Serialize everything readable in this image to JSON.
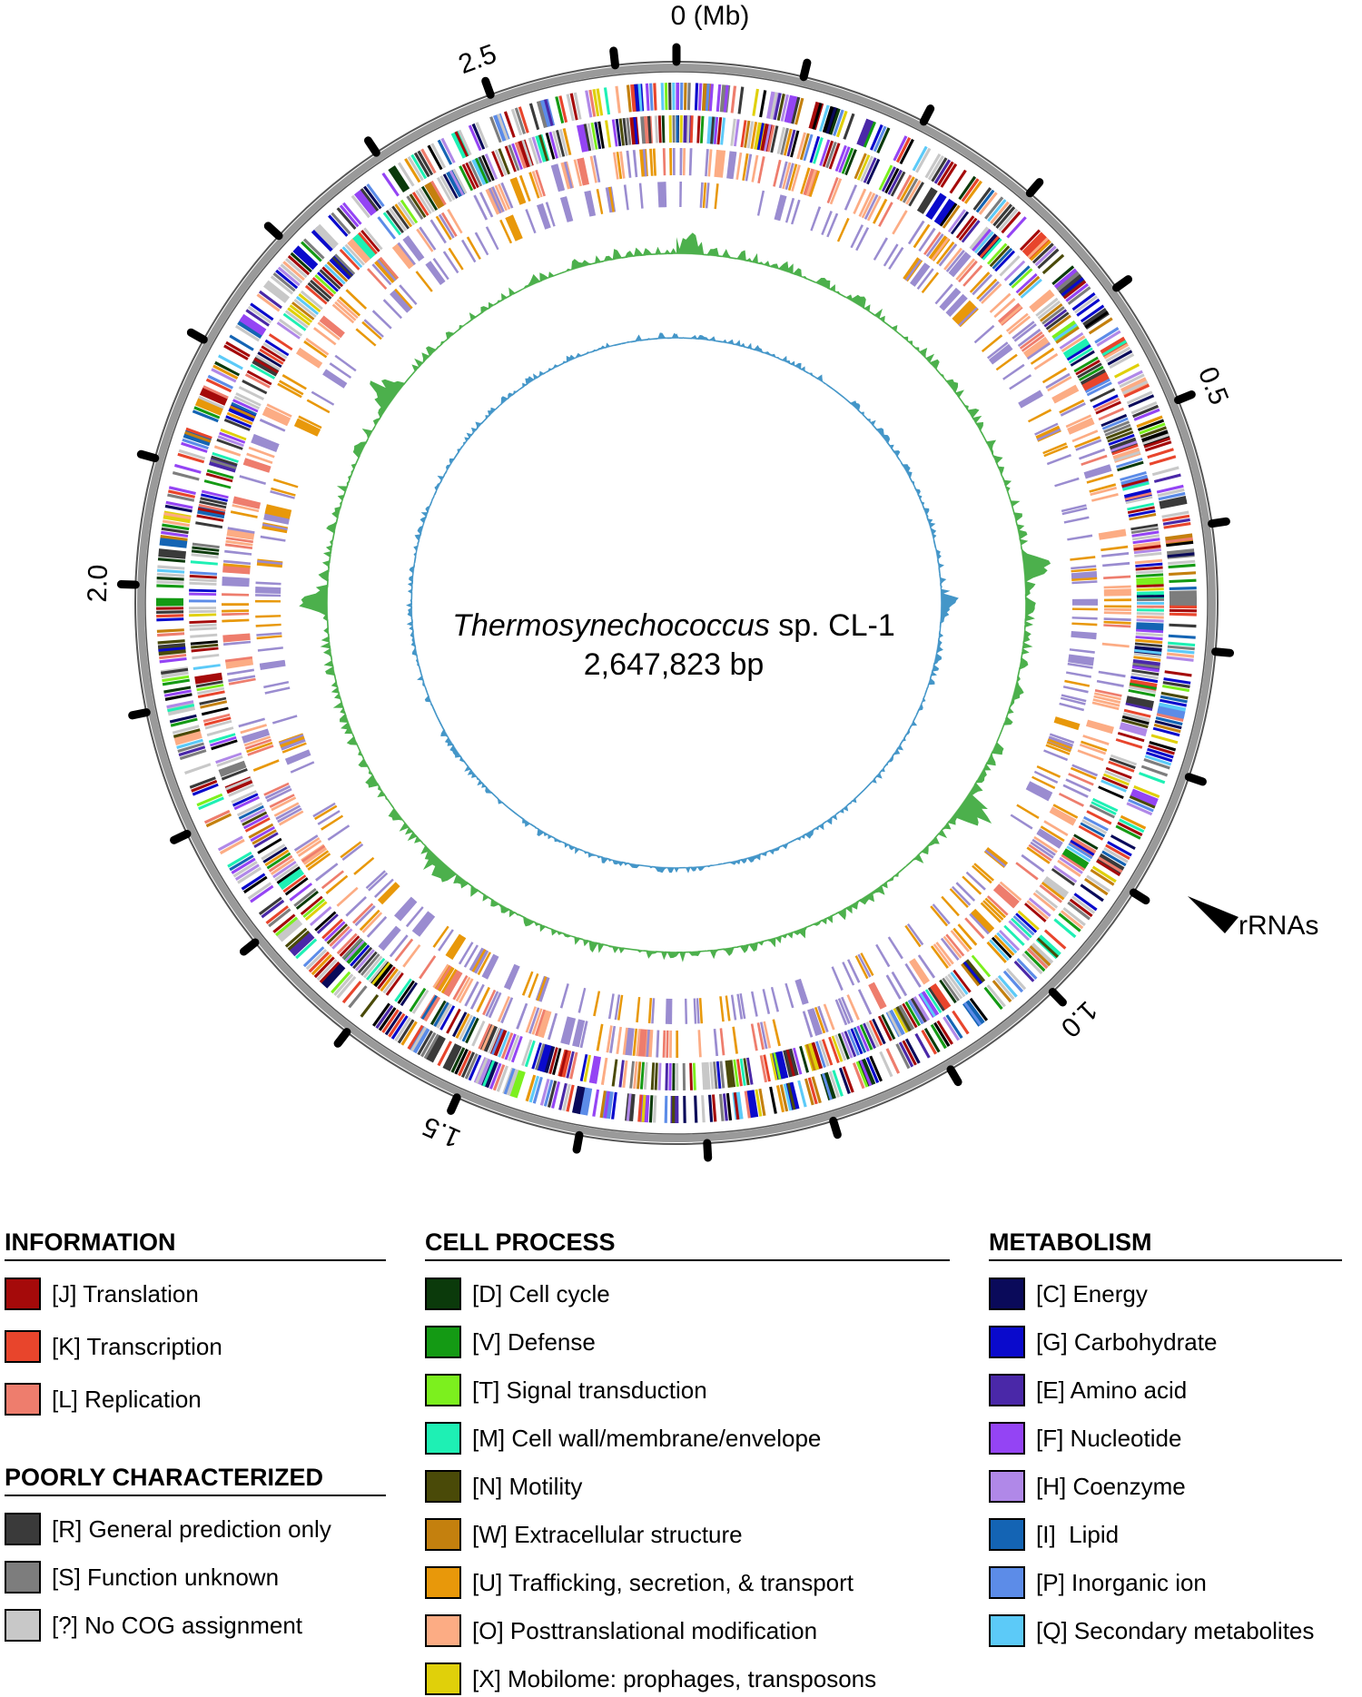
{
  "genome": {
    "organism": "Thermosynechococcus",
    "strain_suffix": " sp. CL-1",
    "size_label": "2,647,823 bp",
    "total_mb": 2.647823
  },
  "scale": {
    "zero_label": "0 (Mb)",
    "ticks": [
      {
        "mb": 0.5,
        "label": "0.5"
      },
      {
        "mb": 1.0,
        "label": "1.0"
      },
      {
        "mb": 1.5,
        "label": "1.5"
      },
      {
        "mb": 2.0,
        "label": "2.0"
      },
      {
        "mb": 2.5,
        "label": "2.5"
      }
    ]
  },
  "annotations": {
    "rrna_label": "rRNAs",
    "rrna_position_mb": 0.82
  },
  "legend": {
    "information": {
      "heading": "INFORMATION",
      "items": [
        {
          "code": "J",
          "label": "[J] Translation",
          "color": "#a50a0a"
        },
        {
          "code": "K",
          "label": "[K] Transcription",
          "color": "#e8452c"
        },
        {
          "code": "L",
          "label": "[L] Replication",
          "color": "#ee7d6d"
        }
      ]
    },
    "poorly_characterized": {
      "heading": "POORLY CHARACTERIZED",
      "items": [
        {
          "code": "R",
          "label": "[R] General prediction only",
          "color": "#3a3a3a"
        },
        {
          "code": "S",
          "label": "[S] Function unknown",
          "color": "#7d7d7d"
        },
        {
          "code": "?",
          "label": "[?] No COG assignment",
          "color": "#c8c8c8"
        }
      ]
    },
    "cell_process": {
      "heading": "CELL PROCESS",
      "items": [
        {
          "code": "D",
          "label": "[D] Cell cycle",
          "color": "#0b3a0b"
        },
        {
          "code": "V",
          "label": "[V] Defense",
          "color": "#149a14"
        },
        {
          "code": "T",
          "label": "[T] Signal transduction",
          "color": "#7cf01e"
        },
        {
          "code": "M",
          "label": "[M] Cell wall/membrane/envelope",
          "color": "#1ef0b4"
        },
        {
          "code": "N",
          "label": "[N] Motility",
          "color": "#4a4a08"
        },
        {
          "code": "W",
          "label": "[W] Extracellular structure",
          "color": "#c4800e"
        },
        {
          "code": "U",
          "label": "[U] Trafficking, secretion, & transport",
          "color": "#e8980a"
        },
        {
          "code": "O",
          "label": "[O] Posttranslational modification",
          "color": "#fcac84"
        },
        {
          "code": "X",
          "label": "[X] Mobilome: prophages, transposons",
          "color": "#e0d00a"
        }
      ]
    },
    "metabolism": {
      "heading": "METABOLISM",
      "items": [
        {
          "code": "C",
          "label": "[C] Energy",
          "color": "#0a0a5a"
        },
        {
          "code": "G",
          "label": "[G] Carbohydrate",
          "color": "#0a0acc"
        },
        {
          "code": "E",
          "label": "[E] Amino acid",
          "color": "#4a28a8"
        },
        {
          "code": "F",
          "label": "[F] Nucleotide",
          "color": "#9444f4"
        },
        {
          "code": "H",
          "label": "[H] Coenzyme",
          "color": "#b088e8"
        },
        {
          "code": "I",
          "label": "[I]  Lipid",
          "color": "#1464b4"
        },
        {
          "code": "P",
          "label": "[P] Inorganic ion",
          "color": "#5c8ce8"
        },
        {
          "code": "Q",
          "label": "[Q] Secondary metabolites",
          "color": "#5ccaf8"
        }
      ]
    }
  },
  "track_colors": {
    "gc_content": "#4cb04c",
    "gc_content_light": "#b4dcac",
    "gc_skew": "#4496c8",
    "gc_skew_light": "#b0d0ec",
    "trna_track": "#9a8cd0",
    "scale_ring": "#808080"
  }
}
